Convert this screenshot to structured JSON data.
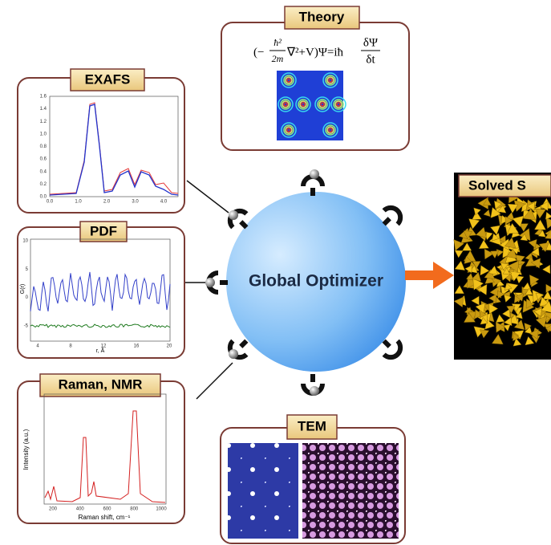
{
  "theory": {
    "label": "Theory",
    "equation": [
      "(−",
      "ħ²",
      "2m",
      "∇²+V)Ψ=iħ",
      "δΨ",
      "δt"
    ]
  },
  "exafs": {
    "label": "EXAFS",
    "yticks": [
      "1.6",
      "1.4",
      "1.2",
      "1.0",
      "0.8",
      "0.6",
      "0.4",
      "0.2",
      "0.0"
    ],
    "xticks": [
      "0.0",
      "1.0",
      "2.0",
      "3.0",
      "4.0"
    ]
  },
  "pdf": {
    "label": "PDF",
    "y_label": "G(r)",
    "x_label": "r, Å",
    "yticks": [
      "10",
      "5",
      "0",
      "-5"
    ],
    "xticks": [
      "4",
      "8",
      "12",
      "16",
      "20"
    ]
  },
  "raman": {
    "label": "Raman, NMR",
    "y_label": "Intensity (a.u.)",
    "x_label": "Raman shift, cm⁻¹",
    "xticks": [
      "200",
      "400",
      "600",
      "800",
      "1000"
    ]
  },
  "tem": {
    "label": "TEM"
  },
  "optimizer": {
    "label": "Global Optimizer"
  },
  "solved": {
    "label": "Solved S"
  }
}
